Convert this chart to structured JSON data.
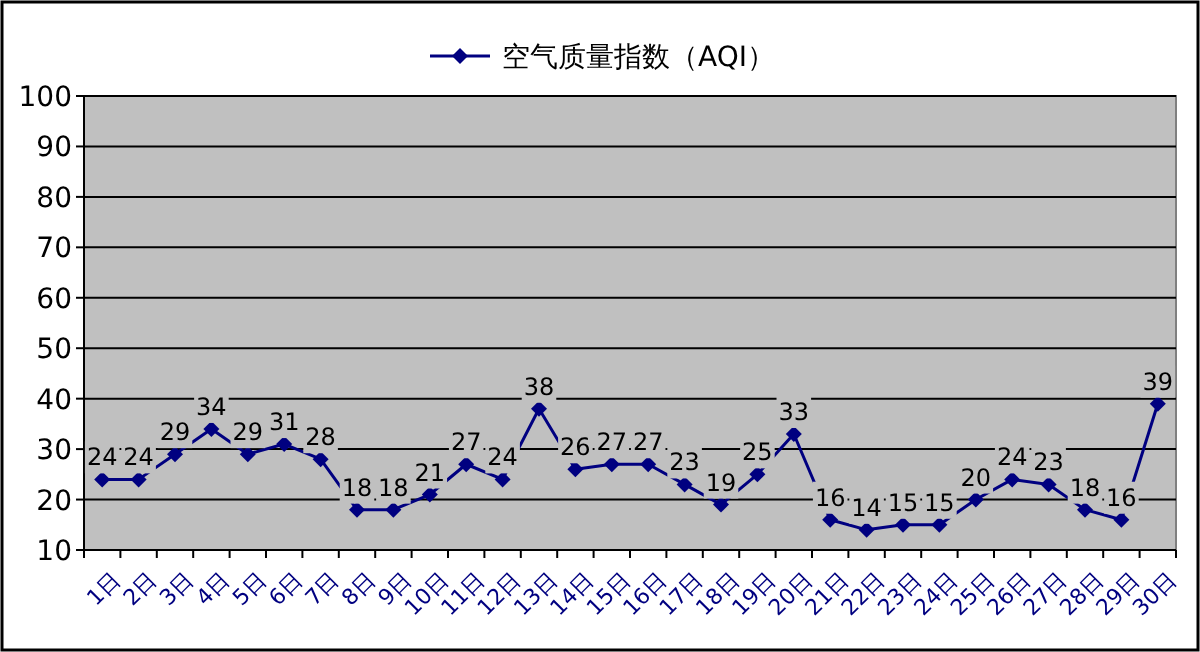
{
  "chart_data": {
    "type": "line",
    "categories": [
      "1日",
      "2日",
      "3日",
      "4日",
      "5日",
      "6日",
      "7日",
      "8日",
      "9日",
      "10日",
      "11日",
      "12日",
      "13日",
      "14日",
      "15日",
      "16日",
      "17日",
      "18日",
      "19日",
      "20日",
      "21日",
      "22日",
      "23日",
      "24日",
      "25日",
      "26日",
      "27日",
      "28日",
      "29日",
      "30日"
    ],
    "series": [
      {
        "name": "空气质量指数（AQI）",
        "color": "#000080",
        "values": [
          24,
          24,
          29,
          34,
          29,
          31,
          28,
          18,
          18,
          21,
          27,
          24,
          38,
          26,
          27,
          27,
          23,
          19,
          25,
          33,
          16,
          14,
          15,
          15,
          20,
          24,
          23,
          18,
          16,
          39
        ]
      }
    ],
    "ylim": [
      10,
      100
    ],
    "yticks": [
      10,
      20,
      30,
      40,
      50,
      60,
      70,
      80,
      90,
      100
    ],
    "grid": "y",
    "legend": "top",
    "marker": "diamond",
    "data_labels": true
  }
}
